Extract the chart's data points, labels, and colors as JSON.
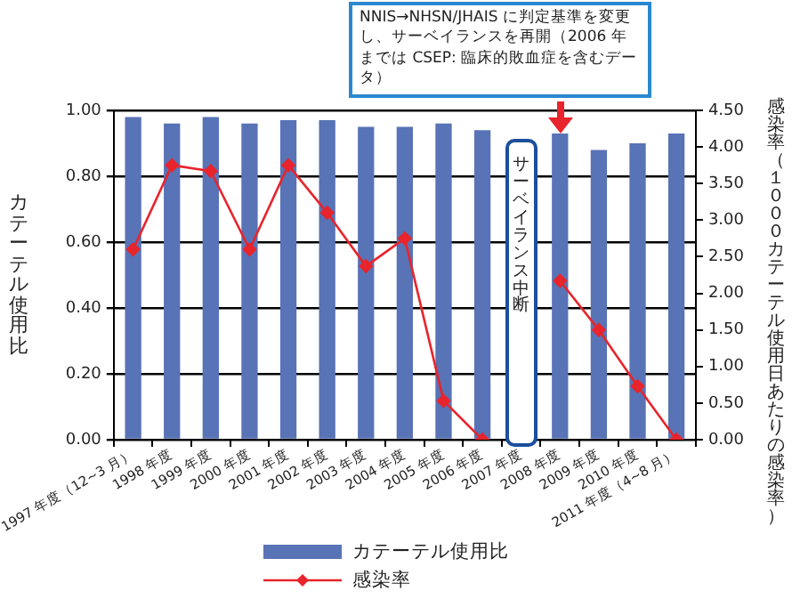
{
  "chart_data": {
    "type": "bar",
    "categories": [
      "1997 年度（12~3 月）",
      "1998 年度",
      "1999 年度",
      "2000 年度",
      "2001 年度",
      "2002 年度",
      "2003 年度",
      "2004 年度",
      "2005 年度",
      "2006 年度",
      "2007 年度",
      "2008 年度",
      "2009 年度",
      "2010 年度",
      "2011 年度（4~8 月）"
    ],
    "series": [
      {
        "name": "カテーテル使用比",
        "color": "#5873b6",
        "values": [
          0.98,
          0.96,
          0.98,
          0.96,
          0.97,
          0.97,
          0.95,
          0.95,
          0.96,
          0.94,
          null,
          0.93,
          0.88,
          0.9,
          0.93
        ]
      },
      {
        "name": "感染率",
        "type": "line",
        "axis": "y2",
        "color": "#e8242c",
        "values": [
          2.6,
          3.75,
          3.67,
          2.6,
          3.75,
          3.1,
          2.37,
          2.75,
          0.53,
          0.0,
          null,
          2.17,
          1.5,
          0.73,
          0.0
        ]
      }
    ],
    "ylabel": "カテーテル使用比",
    "y2label": "感染率（１０００カテーテル使用日あたりの感染率）",
    "ylim": [
      0,
      1
    ],
    "yticks": [
      {
        "value": 0,
        "label": "0.00"
      },
      {
        "value": 0.2,
        "label": "0.20"
      },
      {
        "value": 0.4,
        "label": "0.40"
      },
      {
        "value": 0.6,
        "label": "0.60"
      },
      {
        "value": 0.8,
        "label": "0.80"
      },
      {
        "value": 1,
        "label": "1.00"
      }
    ],
    "y2lim": [
      0,
      4.5
    ],
    "y2ticks": [
      {
        "value": 0,
        "label": "0.00"
      },
      {
        "value": 0.5,
        "label": "0.50"
      },
      {
        "value": 1,
        "label": "1.00"
      },
      {
        "value": 1.5,
        "label": "1.50"
      },
      {
        "value": 2,
        "label": "2.00"
      },
      {
        "value": 2.5,
        "label": "2.50"
      },
      {
        "value": 3,
        "label": "3.00"
      },
      {
        "value": 3.5,
        "label": "3.50"
      },
      {
        "value": 4,
        "label": "4.00"
      },
      {
        "value": 4.5,
        "label": "4.50"
      }
    ],
    "grid": "y",
    "legend": "bottom",
    "marker": "diamond",
    "annotations": [
      "NNIS→NHSN/JHAIS に判定基準を変更し、サーベイランスを再開（2006 年までは CSEP: 臨床的敗血症を含むデータ）"
    ],
    "bands": [
      {
        "axis": "x",
        "from": "2007 年度",
        "to": "2007 年度",
        "label": "サーベイランス中断",
        "color": "#1c4f9c"
      }
    ]
  }
}
